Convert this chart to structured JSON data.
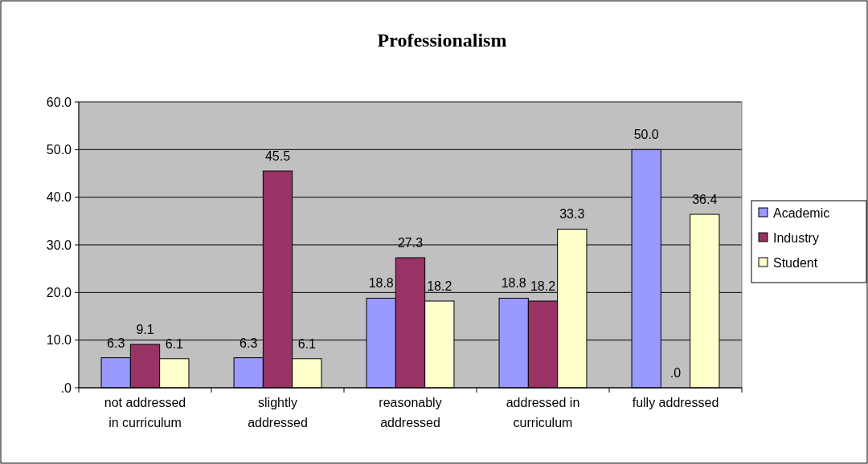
{
  "chart_data": {
    "type": "bar",
    "title": "Professionalism",
    "categories": [
      "not addressed in curriculum",
      "slightly addressed",
      "reasonably addressed",
      "addressed in curriculum",
      "fully addressed"
    ],
    "series": [
      {
        "name": "Academic",
        "color": "#9999ff",
        "values": [
          6.3,
          6.3,
          18.8,
          18.8,
          50.0
        ],
        "value_labels": [
          "6.3",
          "6.3",
          "18.8",
          "18.8",
          "50.0"
        ]
      },
      {
        "name": "Industry",
        "color": "#993366",
        "values": [
          9.1,
          45.5,
          27.3,
          18.2,
          0
        ],
        "value_labels": [
          "9.1",
          "45.5",
          "27.3",
          "18.2",
          ".0"
        ]
      },
      {
        "name": "Student",
        "color": "#ffffcc",
        "values": [
          6.1,
          6.1,
          18.2,
          33.3,
          36.4
        ],
        "value_labels": [
          "6.1",
          "6.1",
          "18.2",
          "33.3",
          "36.4"
        ]
      }
    ],
    "ylim": [
      0,
      60
    ],
    "yticks": [
      {
        "value": 0,
        "label": ".0"
      },
      {
        "value": 10,
        "label": "10.0"
      },
      {
        "value": 20,
        "label": "20.0"
      },
      {
        "value": 30,
        "label": "30.0"
      },
      {
        "value": 40,
        "label": "40.0"
      },
      {
        "value": 50,
        "label": "50.0"
      },
      {
        "value": 60,
        "label": "60.0"
      }
    ],
    "grid": "y",
    "legend": "right"
  }
}
